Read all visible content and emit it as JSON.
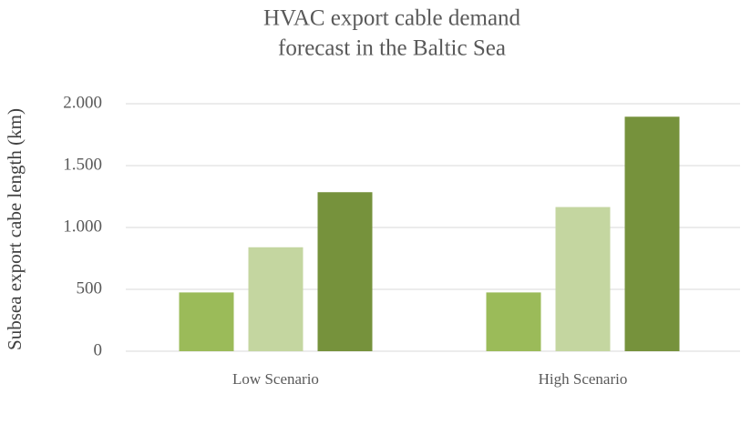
{
  "chart_data": {
    "type": "bar",
    "title": [
      "HVAC export cable demand",
      "forecast in the Baltic Sea"
    ],
    "y_label": "Subsea export cabe length (km)",
    "categories": [
      "Low Scenario",
      "High Scenario"
    ],
    "series": [
      {
        "color": "#9bbb59",
        "values": [
          475,
          475
        ]
      },
      {
        "color": "#c4d6a0",
        "values": [
          840,
          1165
        ]
      },
      {
        "color": "#76923c",
        "values": [
          1285,
          1895
        ]
      }
    ],
    "ylim": [
      0,
      2000
    ],
    "yticks": [
      0,
      500,
      {
        "value": 1000,
        "label": "1.000"
      },
      {
        "value": 1500,
        "label": "1.500"
      },
      {
        "value": 2000,
        "label": "2.000"
      }
    ],
    "grid": true
  }
}
